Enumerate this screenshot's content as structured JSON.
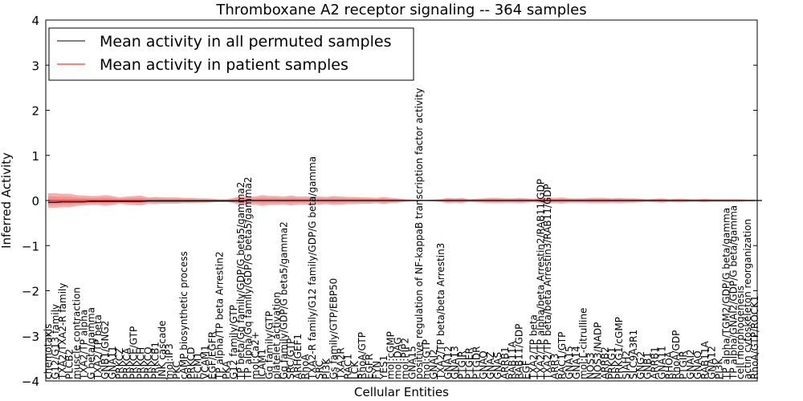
{
  "chart_data": {
    "type": "line",
    "title": "Thromboxane A2 receptor signaling -- 364 samples",
    "xlabel": "Cellular Entities",
    "ylabel": "Inferred Activity",
    "ylim": [
      -4,
      4
    ],
    "yticks": [
      "−4",
      "−3",
      "−2",
      "−1",
      "0",
      "1",
      "2",
      "3",
      "4"
    ],
    "legend_position": "top-left",
    "colors": {
      "permuted": "#000000",
      "patient": "#ff0000",
      "band": "#f4a0a0",
      "band_gray": "#c8c8c8"
    },
    "series": [
      {
        "name": "Mean activity in all permuted samples",
        "key": "permuted"
      },
      {
        "name": "Mean activity in patient samples",
        "key": "patient"
      }
    ],
    "categories": [
      "chemotaxis",
      "G12/G13 family",
      "TXA2/TXA2-R family",
      "PLCB2",
      "muscle contraction",
      "TXA2/TP alpha",
      "G beta/gamma",
      "TXA2/TP beta",
      "GNB1/GNG2",
      "GNA11",
      "PRKCZ",
      "PRKCA",
      "PRKCE/GTP",
      "PRKCH",
      "PRKCQ",
      "PRKCB1",
      "JNK cascade",
      "mol:IP3",
      "PKC",
      "cAMP biosynthetic process",
      "PRKCD",
      "ECM1",
      "VCAM1",
      "EGF/EGFR",
      "TP alpha/TP beta Arrestin2",
      "PKA",
      "G12 family/GTP",
      "TP beta/Gq family/GDP/G beta5/gamma2",
      "TP alpha/Gq family/GDP/G beta5/gamma2",
      "mol:Ca2+",
      "ICAM1",
      "Gq family/GTP",
      "platelet activation",
      "Gq family/GDP/G beta5/gamma2",
      "SRC/GTP",
      "ARHGEF1",
      "RhoA",
      "TXA2-R family/G12 family/GDP/G beta/gamma",
      "SRC",
      "PI3K",
      "Gs family/GTP/EBP50",
      "TXA2R",
      "RAC1",
      "LCK",
      "RhoA/GTP",
      "EGFR",
      "FYN",
      "YES1",
      "mol:cGMP",
      "mol:DAG",
      "mol:PIP2",
      "GNA15",
      "positive regulation of NF-kappaB transcription factor activity",
      "mol:GTP",
      "GNAI2",
      "TXA2/TP beta/beta Arrestin3",
      "GNA12",
      "GNA13",
      "PTGIR",
      "PTGER",
      "PTGDR",
      "GNAQ",
      "GNAZ",
      "GNAS",
      "ARRB1",
      "RAB11A",
      "RAB11/GDP",
      "EGF",
      "TXA2/TP beta",
      "TXA2/TP alpha/beta Arrestin2/RAB11/GDP",
      "TXA2/TP beta/beta Arrestin3/RAB11/GDP",
      "ARR3",
      "RAC1/GTP",
      "GNA15",
      "GNA14",
      "mol:L-citrulline",
      "NOS3",
      "NOS3/NADP",
      "ARRB2",
      "PRKG1",
      "PRKG1/cGMP",
      "SIAH2",
      "SLC9A3R1",
      "GNG2",
      "GNB1",
      "ARRB1",
      "GNA11",
      "RHOA",
      "RhoA/GDP",
      "PTGIR",
      "GNAI2",
      "GNAQ",
      "RAB11A",
      "GNA12",
      "PI3K",
      "TP alpha/TGM2/GDP/G beta/gamma",
      "TP alpha/GNAI2/GDP/G beta/gamma",
      "cell morphogenesis",
      "actin cytoskeleton reorganization",
      "RhoA/GTP/ROCK1"
    ],
    "permuted_mean": [
      -0.04,
      -0.04,
      -0.03,
      -0.03,
      -0.03,
      -0.03,
      -0.02,
      -0.02,
      -0.02,
      -0.02,
      -0.02,
      -0.02,
      -0.02,
      -0.02,
      -0.01,
      -0.01,
      -0.01,
      -0.01,
      -0.01,
      -0.01,
      -0.01,
      -0.01,
      -0.01,
      -0.01,
      -0.01,
      -0.01,
      -0.01,
      -0.01,
      0.0,
      0.0,
      0.0,
      0.0,
      0.0,
      0.0,
      0.0,
      0.0,
      0.0,
      0.0,
      0.0,
      0.0,
      0.0,
      0.0,
      0.0,
      0.0,
      0.0,
      0.0,
      0.0,
      0.0,
      0.0,
      0.0,
      0.0,
      0.0,
      0.0,
      0.0,
      0.0,
      0.0,
      0.0,
      0.0,
      0.0,
      0.0,
      0.0,
      0.0,
      0.0,
      0.0,
      0.0,
      0.0,
      0.0,
      0.0,
      0.0,
      0.0,
      0.0,
      0.0,
      0.0,
      0.0,
      0.0,
      0.0,
      0.0,
      0.0,
      0.0,
      0.0,
      0.0,
      0.0,
      0.0,
      0.0,
      0.0,
      0.0,
      0.0,
      0.0,
      0.0,
      0.0,
      0.0,
      0.0,
      0.0,
      0.0,
      0.0,
      0.0,
      0.0,
      0.0,
      0.0,
      0.0,
      0.0
    ],
    "patient_mean": [
      0.0,
      0.0,
      0.0,
      0.0,
      0.0,
      0.0,
      0.0,
      0.0,
      0.0,
      0.0,
      0.0,
      0.0,
      0.0,
      0.0,
      0.0,
      0.0,
      0.0,
      0.0,
      0.0,
      0.0,
      0.0,
      0.0,
      0.0,
      0.0,
      0.0,
      0.0,
      0.0,
      0.0,
      0.0,
      0.0,
      0.0,
      0.0,
      0.0,
      0.0,
      0.0,
      0.0,
      0.0,
      0.0,
      0.0,
      0.0,
      0.0,
      0.0,
      0.0,
      0.0,
      0.0,
      0.0,
      0.0,
      0.0,
      0.0,
      0.0,
      0.0,
      0.0,
      0.0,
      0.0,
      0.0,
      0.0,
      0.0,
      0.0,
      0.0,
      0.0,
      0.0,
      0.0,
      0.0,
      0.0,
      0.0,
      0.0,
      0.0,
      0.0,
      0.0,
      0.0,
      0.0,
      0.0,
      0.0,
      0.0,
      0.0,
      0.0,
      0.0,
      0.0,
      0.0,
      0.0,
      0.0,
      0.0,
      0.0,
      0.0,
      0.0,
      0.0,
      0.0,
      0.0,
      0.0,
      0.0,
      0.0,
      0.0,
      0.0,
      0.0,
      0.0,
      0.0,
      0.0,
      0.0,
      0.0,
      0.0,
      0.0
    ],
    "patient_band_halfwidth": [
      0.16,
      0.16,
      0.15,
      0.15,
      0.12,
      0.11,
      0.1,
      0.1,
      0.12,
      0.1,
      0.07,
      0.09,
      0.1,
      0.11,
      0.07,
      0.08,
      0.07,
      0.07,
      0.07,
      0.06,
      0.06,
      0.05,
      0.05,
      0.04,
      0.03,
      0.03,
      0.06,
      0.1,
      0.09,
      0.09,
      0.12,
      0.1,
      0.1,
      0.09,
      0.11,
      0.09,
      0.09,
      0.09,
      0.09,
      0.08,
      0.1,
      0.09,
      0.08,
      0.08,
      0.07,
      0.07,
      0.06,
      0.08,
      0.06,
      0.05,
      0.03,
      0.02,
      0.01,
      0.01,
      0.02,
      0.03,
      0.06,
      0.05,
      0.06,
      0.03,
      0.04,
      0.05,
      0.06,
      0.06,
      0.05,
      0.05,
      0.06,
      0.05,
      0.04,
      0.06,
      0.07,
      0.06,
      0.07,
      0.05,
      0.05,
      0.05,
      0.06,
      0.06,
      0.06,
      0.05,
      0.06,
      0.05,
      0.05,
      0.04,
      0.03,
      0.04,
      0.05,
      0.03,
      0.04,
      0.04,
      0.03,
      0.03,
      0.04,
      0.03,
      0.03,
      0.03,
      0.03,
      0.03,
      0.02,
      0.02,
      0.02
    ]
  }
}
